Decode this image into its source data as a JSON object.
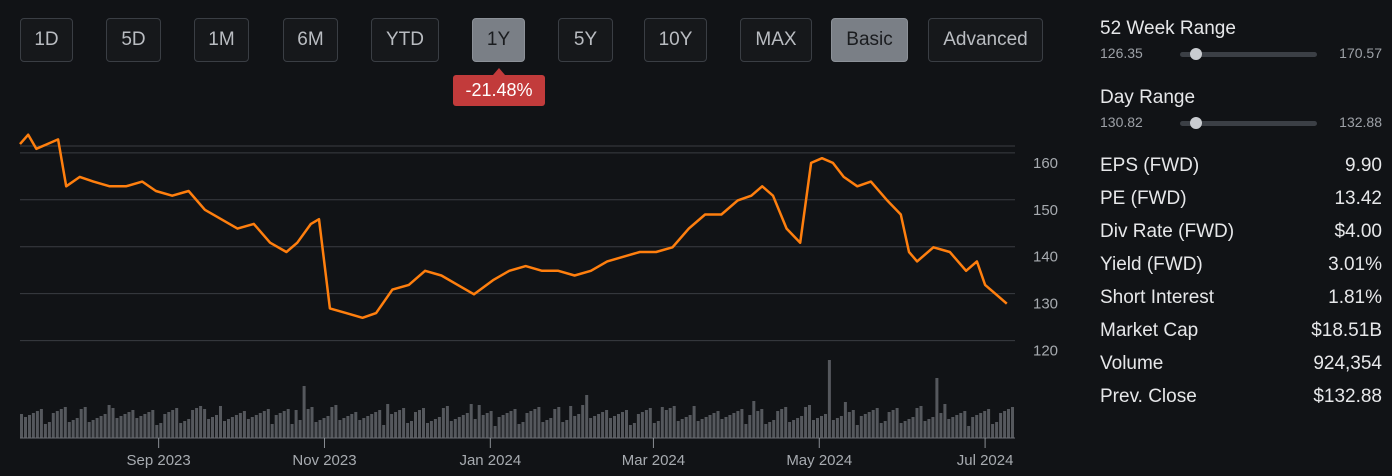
{
  "period_buttons": [
    {
      "label": "1D",
      "active": false
    },
    {
      "label": "5D",
      "active": false
    },
    {
      "label": "1M",
      "active": false
    },
    {
      "label": "6M",
      "active": false
    },
    {
      "label": "YTD",
      "active": false
    },
    {
      "label": "1Y",
      "active": true
    },
    {
      "label": "5Y",
      "active": false
    },
    {
      "label": "10Y",
      "active": false
    },
    {
      "label": "MAX",
      "active": false
    },
    {
      "label": "Basic",
      "active": true
    },
    {
      "label": "Advanced",
      "active": false
    }
  ],
  "change_badge": "-21.48%",
  "colors": {
    "line": "#ff7f0e",
    "badge": "#c23b3b",
    "volume": "#55585d",
    "grid": "#3a3d42"
  },
  "chart_data": {
    "type": "line",
    "x_range": [
      "2023-07-12",
      "2024-07-12"
    ],
    "ylim": [
      118,
      167
    ],
    "y_ticks": [
      120,
      130,
      140,
      150,
      160
    ],
    "x_ticks": [
      {
        "date": "2023-09-01",
        "label": "Sep 2023"
      },
      {
        "date": "2023-11-01",
        "label": "Nov 2023"
      },
      {
        "date": "2024-01-01",
        "label": "Jan 2024"
      },
      {
        "date": "2024-03-01",
        "label": "Mar 2024"
      },
      {
        "date": "2024-05-01",
        "label": "May 2024"
      },
      {
        "date": "2024-07-01",
        "label": "Jul 2024"
      }
    ],
    "grid": true,
    "series": [
      {
        "points": [
          [
            "2023-07-12",
            164
          ],
          [
            "2023-07-15",
            166
          ],
          [
            "2023-07-18",
            163
          ],
          [
            "2023-07-22",
            164
          ],
          [
            "2023-07-26",
            165
          ],
          [
            "2023-07-29",
            155
          ],
          [
            "2023-08-03",
            157
          ],
          [
            "2023-08-08",
            156
          ],
          [
            "2023-08-14",
            155
          ],
          [
            "2023-08-20",
            155
          ],
          [
            "2023-08-26",
            156
          ],
          [
            "2023-08-31",
            154
          ],
          [
            "2023-09-06",
            153
          ],
          [
            "2023-09-12",
            154
          ],
          [
            "2023-09-18",
            150
          ],
          [
            "2023-09-24",
            148
          ],
          [
            "2023-09-30",
            146
          ],
          [
            "2023-10-06",
            147
          ],
          [
            "2023-10-12",
            143
          ],
          [
            "2023-10-18",
            141
          ],
          [
            "2023-10-22",
            143
          ],
          [
            "2023-10-27",
            147
          ],
          [
            "2023-10-30",
            148
          ],
          [
            "2023-11-03",
            129
          ],
          [
            "2023-11-09",
            128
          ],
          [
            "2023-11-15",
            127
          ],
          [
            "2023-11-20",
            128
          ],
          [
            "2023-11-26",
            133
          ],
          [
            "2023-12-02",
            134
          ],
          [
            "2023-12-08",
            137
          ],
          [
            "2023-12-14",
            136
          ],
          [
            "2023-12-20",
            134
          ],
          [
            "2023-12-26",
            132
          ],
          [
            "2024-01-02",
            135
          ],
          [
            "2024-01-08",
            137
          ],
          [
            "2024-01-14",
            138
          ],
          [
            "2024-01-20",
            137
          ],
          [
            "2024-01-26",
            137
          ],
          [
            "2024-02-01",
            136
          ],
          [
            "2024-02-07",
            137
          ],
          [
            "2024-02-13",
            139
          ],
          [
            "2024-02-19",
            140
          ],
          [
            "2024-02-25",
            141
          ],
          [
            "2024-03-02",
            141
          ],
          [
            "2024-03-08",
            142
          ],
          [
            "2024-03-14",
            146
          ],
          [
            "2024-03-20",
            149
          ],
          [
            "2024-03-26",
            149
          ],
          [
            "2024-04-01",
            152
          ],
          [
            "2024-04-06",
            153
          ],
          [
            "2024-04-10",
            155
          ],
          [
            "2024-04-14",
            153
          ],
          [
            "2024-04-19",
            146
          ],
          [
            "2024-04-24",
            143
          ],
          [
            "2024-04-28",
            160
          ],
          [
            "2024-05-02",
            161
          ],
          [
            "2024-05-06",
            160
          ],
          [
            "2024-05-10",
            157
          ],
          [
            "2024-05-15",
            155
          ],
          [
            "2024-05-20",
            156
          ],
          [
            "2024-05-26",
            152
          ],
          [
            "2024-05-31",
            149
          ],
          [
            "2024-06-03",
            141
          ],
          [
            "2024-06-06",
            139
          ],
          [
            "2024-06-12",
            142
          ],
          [
            "2024-06-18",
            141
          ],
          [
            "2024-06-24",
            137
          ],
          [
            "2024-06-28",
            139
          ],
          [
            "2024-07-01",
            134
          ],
          [
            "2024-07-05",
            132
          ],
          [
            "2024-07-09",
            130
          ]
        ]
      }
    ],
    "volume_note_only": false
  },
  "stats": {
    "week52": {
      "title": "52 Week Range",
      "low": "126.35",
      "high": "170.57",
      "position": 0.12
    },
    "day": {
      "title": "Day Range",
      "low": "130.82",
      "high": "132.88",
      "position": 0.12
    },
    "rows": [
      {
        "label": "EPS (FWD)",
        "value": "9.90"
      },
      {
        "label": "PE (FWD)",
        "value": "13.42"
      },
      {
        "label": "Div Rate (FWD)",
        "value": "$4.00"
      },
      {
        "label": "Yield (FWD)",
        "value": "3.01%"
      },
      {
        "label": "Short Interest",
        "value": "1.81%"
      },
      {
        "label": "Market Cap",
        "value": "$18.51B"
      },
      {
        "label": "Volume",
        "value": "924,354"
      },
      {
        "label": "Prev. Close",
        "value": "$132.88"
      }
    ]
  }
}
